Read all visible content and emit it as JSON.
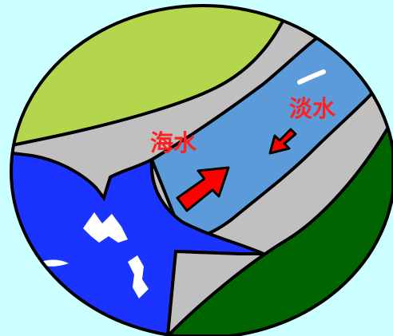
{
  "labels": {
    "seawater": "海水",
    "freshwater": "淡水"
  },
  "colors": {
    "background": "#ccffff",
    "outline": "#000000",
    "grass_light": "#b3d64c",
    "grass_dark": "#006400",
    "embankment": "#c0c0c0",
    "river_water": "#5b9bd9",
    "sea_water": "#1a33ff",
    "arrow": "#ff0000",
    "label": "#ff2020",
    "wave_highlight": "#ffffff"
  }
}
